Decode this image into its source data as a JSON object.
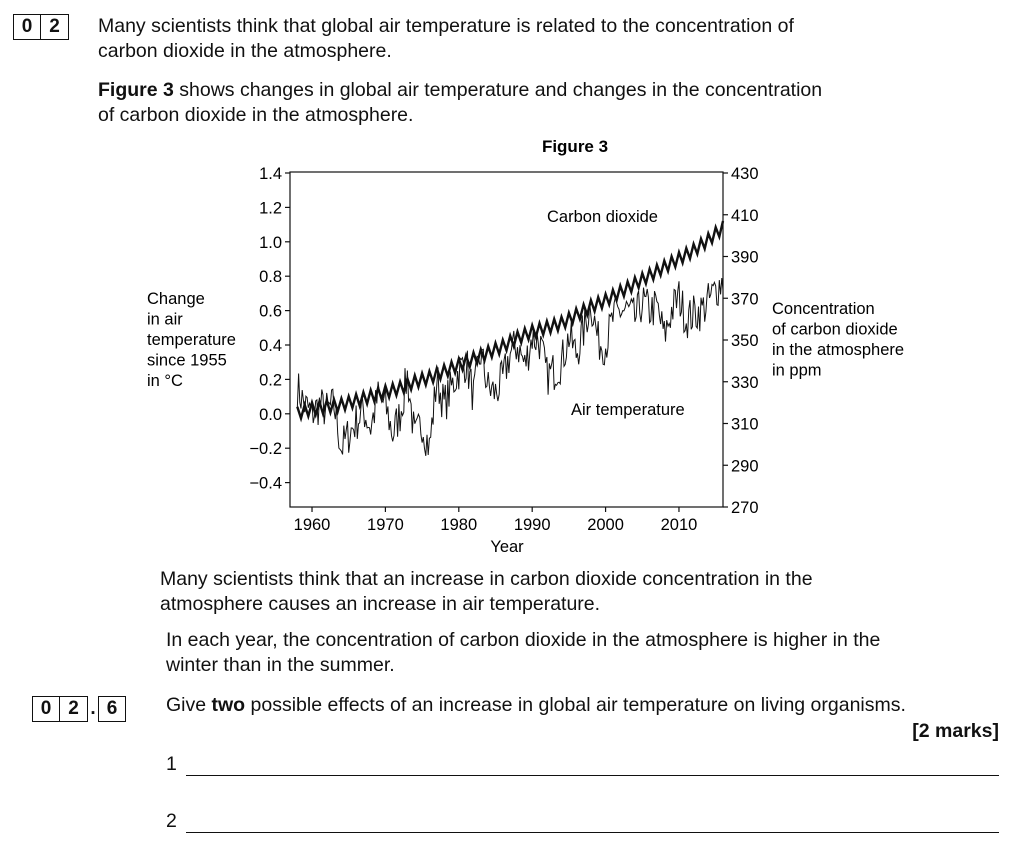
{
  "question": {
    "number_digits": [
      "0",
      "2"
    ],
    "intro_line1": "Many scientists think that global air temperature is related to the concentration of",
    "intro_line2": "carbon dioxide in the atmosphere.",
    "fig_intro_bold": "Figure 3",
    "fig_intro_rest_line1": " shows changes in global air temperature and changes in the concentration",
    "fig_intro_line2": "of carbon dioxide in the atmosphere."
  },
  "chart_data": {
    "type": "line",
    "title": "Figure 3",
    "xlabel": "Year",
    "xlim": [
      1957,
      2016
    ],
    "x_ticks": [
      1960,
      1970,
      1980,
      1990,
      2000,
      2010
    ],
    "left_axis": {
      "label_lines": [
        "Change",
        "in air",
        "temperature",
        "since 1955",
        "in °C"
      ],
      "ylim": [
        -0.6,
        1.4
      ],
      "ticks": [
        1.4,
        1.2,
        1.0,
        0.8,
        0.6,
        0.4,
        0.2,
        0.0,
        -0.2,
        -0.4
      ],
      "tick_labels": [
        "1.4",
        "1.2",
        "1.0",
        "0.8",
        "0.6",
        "0.4",
        "0.2",
        "0.0",
        "−0.2",
        "−0.4"
      ]
    },
    "right_axis": {
      "label_lines": [
        "Concentration",
        "of carbon dioxide",
        "in the atmosphere",
        "in ppm"
      ],
      "ylim": [
        270,
        430
      ],
      "ticks": [
        430,
        410,
        390,
        370,
        350,
        330,
        310,
        290,
        270
      ],
      "tick_labels": [
        "430",
        "410",
        "390",
        "370",
        "350",
        "330",
        "310",
        "290",
        "270"
      ]
    },
    "series": [
      {
        "name": "Carbon dioxide",
        "axis": "right",
        "x": [
          1958,
          1960,
          1962,
          1964,
          1966,
          1968,
          1970,
          1972,
          1974,
          1976,
          1978,
          1980,
          1982,
          1984,
          1986,
          1988,
          1990,
          1992,
          1994,
          1996,
          1998,
          2000,
          2002,
          2004,
          2006,
          2008,
          2010,
          2012,
          2014,
          2016
        ],
        "y": [
          315,
          317,
          318,
          319,
          321,
          323,
          325,
          327,
          330,
          332,
          335,
          338,
          341,
          344,
          347,
          351,
          354,
          356,
          358,
          362,
          366,
          369,
          373,
          377,
          381,
          385,
          389,
          393,
          398,
          404
        ],
        "seasonal_amplitude": 3
      },
      {
        "name": "Air temperature",
        "axis": "left",
        "x": [
          1958,
          1959,
          1960,
          1961,
          1962,
          1963,
          1964,
          1965,
          1966,
          1967,
          1968,
          1969,
          1970,
          1971,
          1972,
          1973,
          1974,
          1975,
          1976,
          1977,
          1978,
          1979,
          1980,
          1981,
          1982,
          1983,
          1984,
          1985,
          1986,
          1987,
          1988,
          1989,
          1990,
          1991,
          1992,
          1993,
          1994,
          1995,
          1996,
          1997,
          1998,
          1999,
          2000,
          2001,
          2002,
          2003,
          2004,
          2005,
          2006,
          2007,
          2008,
          2009,
          2010,
          2011,
          2012,
          2013,
          2014,
          2015,
          2016
        ],
        "y": [
          0.15,
          0.05,
          0.0,
          0.05,
          0.02,
          0.05,
          -0.2,
          -0.12,
          -0.05,
          0.02,
          -0.08,
          0.1,
          0.05,
          -0.12,
          0.0,
          0.22,
          -0.15,
          -0.05,
          -0.2,
          0.2,
          0.05,
          0.15,
          0.25,
          0.3,
          0.1,
          0.35,
          0.15,
          0.12,
          0.2,
          0.35,
          0.4,
          0.28,
          0.45,
          0.42,
          0.22,
          0.25,
          0.3,
          0.45,
          0.35,
          0.48,
          0.65,
          0.42,
          0.4,
          0.55,
          0.6,
          0.6,
          0.55,
          0.65,
          0.6,
          0.62,
          0.45,
          0.6,
          0.68,
          0.55,
          0.58,
          0.6,
          0.65,
          0.72,
          0.78
        ],
        "monthly_noise": 0.12
      }
    ],
    "annotations": [
      "Carbon dioxide",
      "Air temperature"
    ]
  },
  "statements": {
    "line1": "Many scientists think that an increase in carbon dioxide concentration in the",
    "line2": "atmosphere causes an increase in air temperature.",
    "line3": "In each year, the concentration of carbon dioxide in the atmosphere is higher in the",
    "line4": "winter than in the summer."
  },
  "subquestion": {
    "number_digits": [
      "0",
      "2"
    ],
    "separator": ".",
    "part_digit": "6",
    "prompt_before": "Give ",
    "prompt_bold": "two",
    "prompt_after": " possible effects of an increase in global air temperature on living organisms.",
    "marks": "[2 marks]",
    "answer_labels": [
      "1",
      "2"
    ]
  }
}
